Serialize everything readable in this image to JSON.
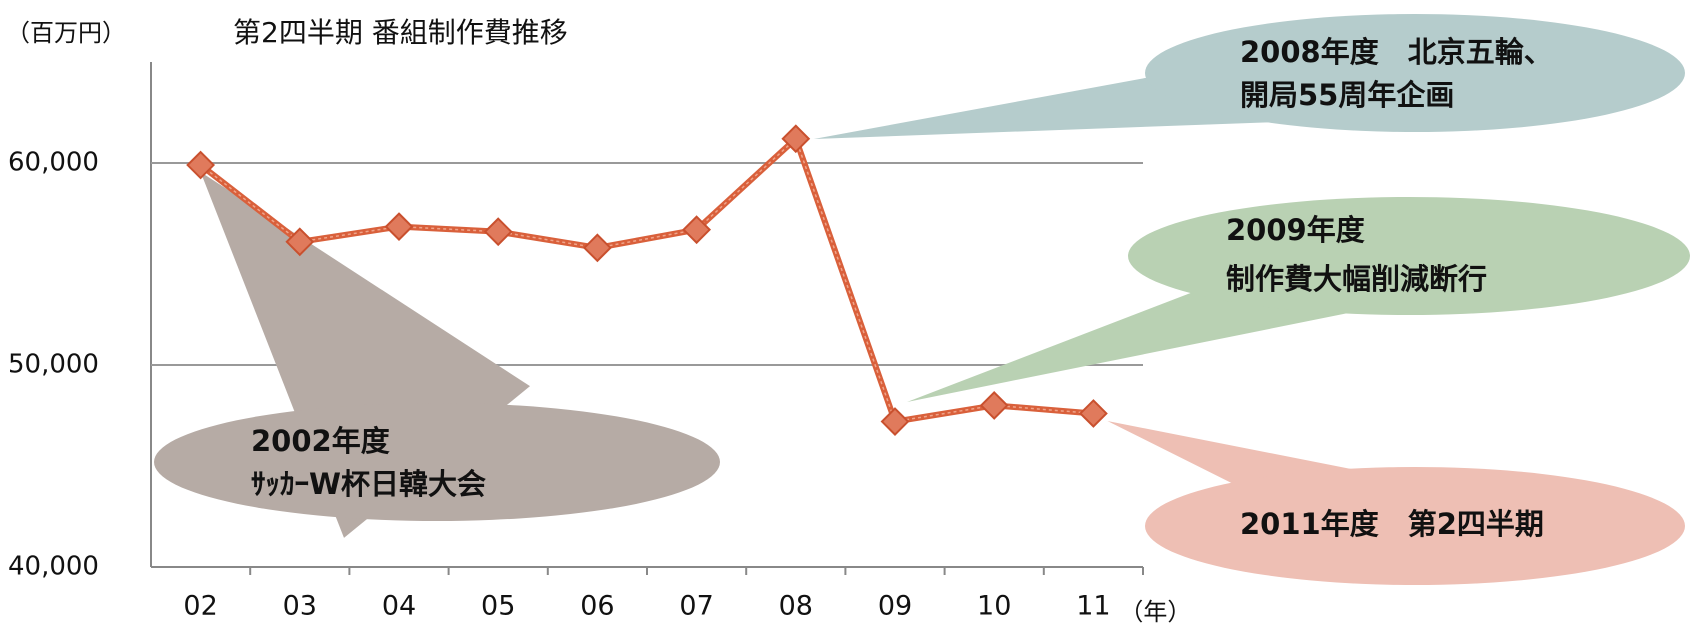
{
  "chart_data": {
    "type": "line",
    "title": "第2四半期 番組制作費推移",
    "y_label": "（百万円）",
    "x_label": "（年）",
    "categories": [
      "02",
      "03",
      "04",
      "05",
      "06",
      "07",
      "08",
      "09",
      "10",
      "11"
    ],
    "series": [
      {
        "name": "番組制作費",
        "color": "#d9603b",
        "values": [
          59900,
          56100,
          56850,
          56600,
          55800,
          56700,
          61200,
          47200,
          48000,
          47600
        ]
      }
    ],
    "ylim": [
      40000,
      65000
    ],
    "yticks": [
      {
        "value": 40000,
        "label": "40,000"
      },
      {
        "value": 50000,
        "label": "50,000"
      },
      {
        "value": 60000,
        "label": "60,000"
      }
    ],
    "grid": true,
    "annotations": [
      {
        "lines": [
          "2008年度　北京五輪、",
          "開局55周年企画"
        ],
        "color": "#b5cccc"
      },
      {
        "lines": [
          "2009年度",
          "制作費大幅削減断行"
        ],
        "color": "#b9d1b3"
      },
      {
        "lines": [
          "2002年度",
          "ｻｯｶｰW杯日韓大会"
        ],
        "color": "#b6aba5"
      },
      {
        "lines": [
          "2011年度　第2四半期"
        ],
        "color": "#eebfb4"
      }
    ]
  }
}
